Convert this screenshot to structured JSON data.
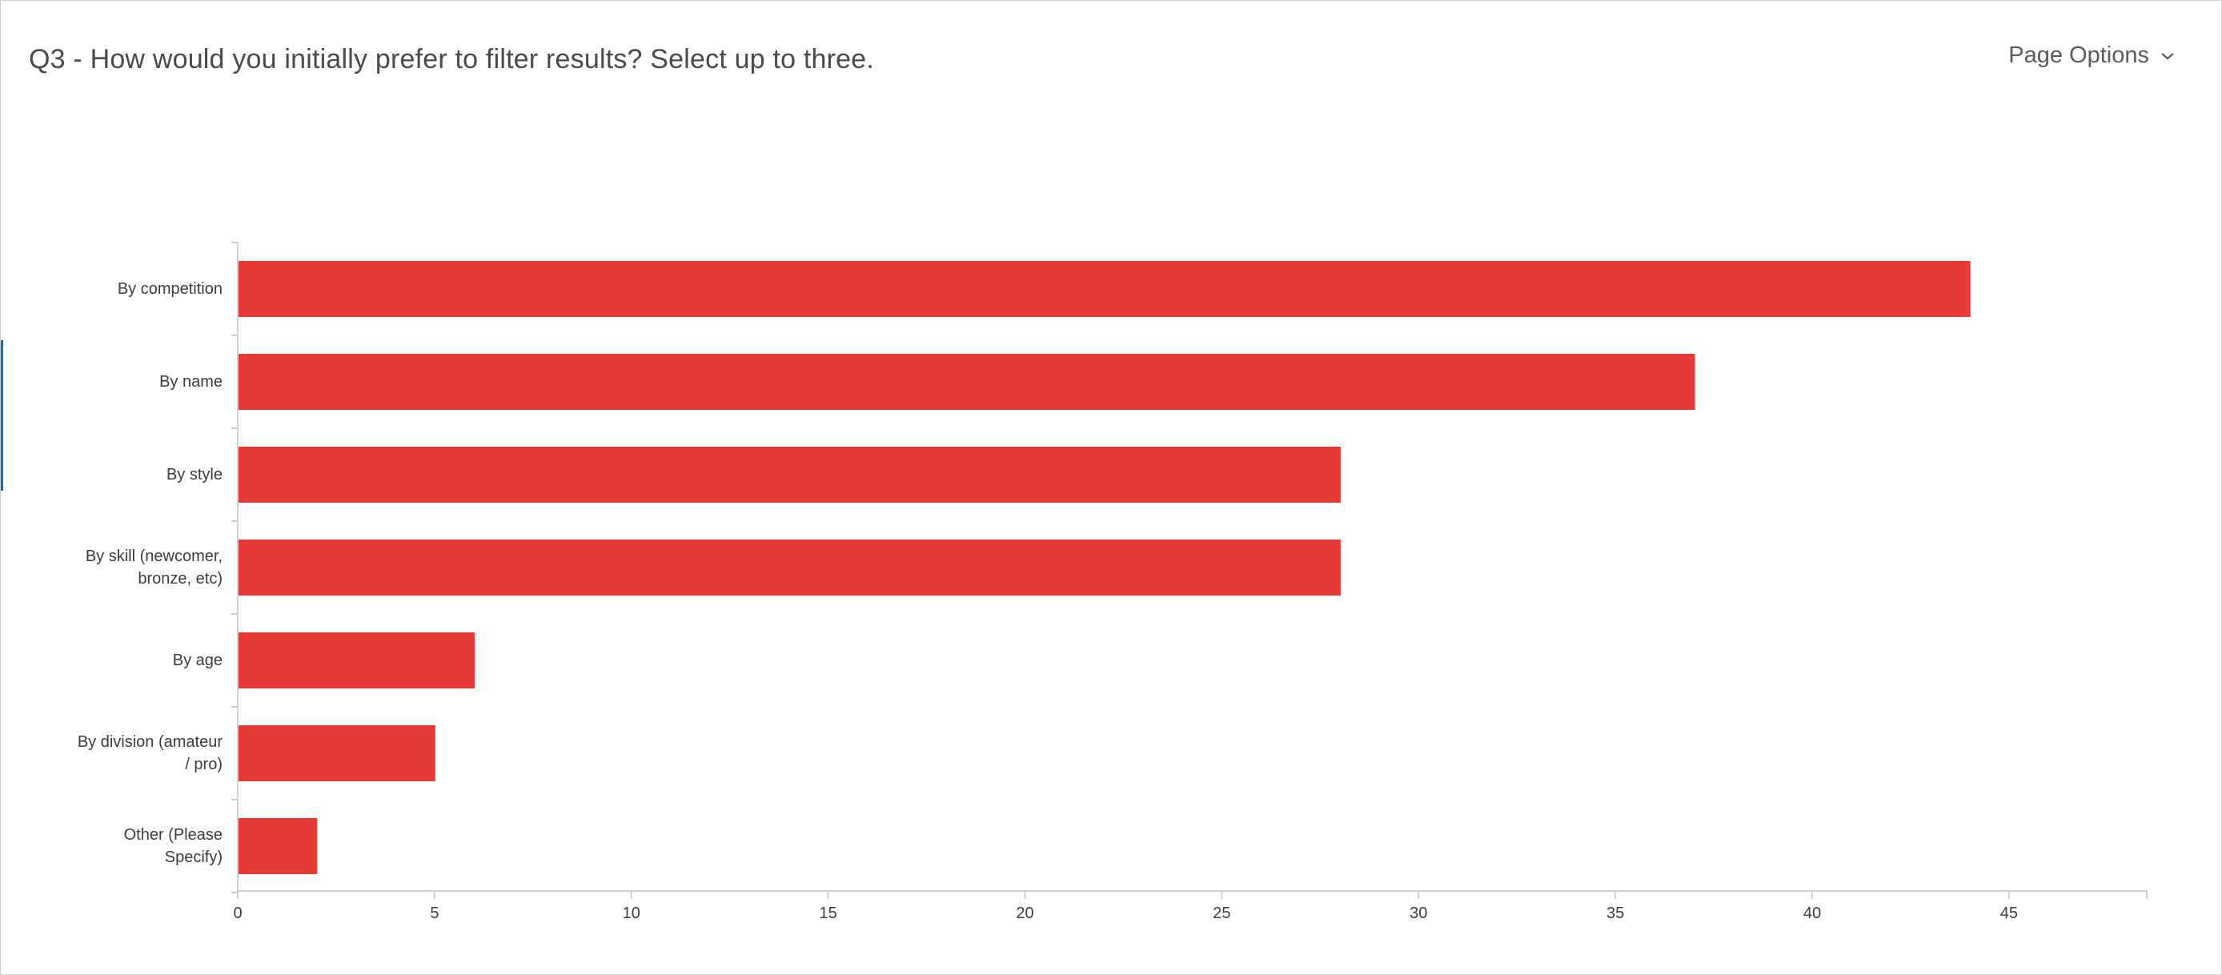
{
  "header": {
    "title": "Q3 - How would you initially prefer to filter results? Select up to three.",
    "page_options_label": "Page Options",
    "page_options_icon": "chevron-down-icon"
  },
  "colors": {
    "bar": "#e63a37",
    "axis": "#cfcfcf",
    "text": "#4a4a4a",
    "accent": "#0a6fb5"
  },
  "chart_data": {
    "type": "bar",
    "orientation": "horizontal",
    "title": "",
    "xlabel": "",
    "ylabel": "",
    "categories": [
      "By competition",
      "By name",
      "By style",
      "By skill (newcomer, bronze, etc)",
      "By age",
      "By division (amateur / pro)",
      "Other (Please Specify)"
    ],
    "category_lines": [
      [
        "By competition"
      ],
      [
        "By name"
      ],
      [
        "By style"
      ],
      [
        "By skill (newcomer,",
        "bronze, etc)"
      ],
      [
        "By age"
      ],
      [
        "By division (amateur",
        "/ pro)"
      ],
      [
        "Other (Please",
        "Specify)"
      ]
    ],
    "values": [
      44,
      37,
      28,
      28,
      6,
      5,
      2
    ],
    "xlim": [
      0,
      48.5
    ],
    "xticks": [
      0,
      5,
      10,
      15,
      20,
      25,
      30,
      35,
      40,
      45
    ],
    "grid": false,
    "legend": "none"
  }
}
